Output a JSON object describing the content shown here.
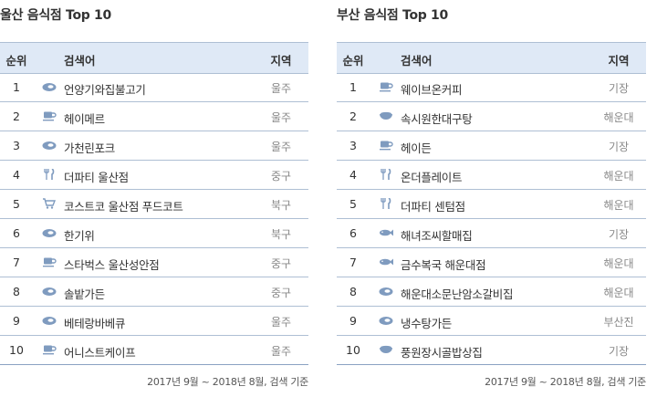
{
  "colors": {
    "header_bg": "#dfe9f6",
    "line": "#aebfd4",
    "icon": "#7f9bbf"
  },
  "headers": {
    "rank": "순위",
    "keyword": "검색어",
    "region": "지역"
  },
  "ulsan": {
    "title": "울산 음식점  Top 10",
    "rows": [
      {
        "rank": "1",
        "icon": "meat-icon",
        "name": "언양기와집불고기",
        "region": "울주"
      },
      {
        "rank": "2",
        "icon": "coffee-cup-icon",
        "name": "헤이메르",
        "region": "울주"
      },
      {
        "rank": "3",
        "icon": "meat-icon",
        "name": "가천린포크",
        "region": "울주"
      },
      {
        "rank": "4",
        "icon": "fork-knife-icon",
        "name": "더파티 울산점",
        "region": "중구"
      },
      {
        "rank": "5",
        "icon": "shopping-cart-icon",
        "name": "코스트코 울산점 푸드코트",
        "region": "북구"
      },
      {
        "rank": "6",
        "icon": "meat-icon",
        "name": "한기위",
        "region": "북구"
      },
      {
        "rank": "7",
        "icon": "coffee-cup-icon",
        "name": "스타벅스 울산성안점",
        "region": "중구"
      },
      {
        "rank": "8",
        "icon": "meat-icon",
        "name": "솔밭가든",
        "region": "중구"
      },
      {
        "rank": "9",
        "icon": "meat-icon",
        "name": "베테랑바베큐",
        "region": "울주"
      },
      {
        "rank": "10",
        "icon": "coffee-cup-icon",
        "name": "어니스트케이프",
        "region": "울주"
      }
    ],
    "footnote": "2017년 9월 ~ 2018년 8월, 검색 기준"
  },
  "busan": {
    "title": "부산 음식점  Top 10",
    "rows": [
      {
        "rank": "1",
        "icon": "coffee-cup-icon",
        "name": "웨이브온커피",
        "region": "기장"
      },
      {
        "rank": "2",
        "icon": "bowl-icon",
        "name": "속시원한대구탕",
        "region": "해운대"
      },
      {
        "rank": "3",
        "icon": "coffee-cup-icon",
        "name": "헤이든",
        "region": "기장"
      },
      {
        "rank": "4",
        "icon": "fork-knife-icon",
        "name": "온더플레이트",
        "region": "해운대"
      },
      {
        "rank": "5",
        "icon": "fork-knife-icon",
        "name": "더파티 센텀점",
        "region": "해운대"
      },
      {
        "rank": "6",
        "icon": "fish-icon",
        "name": "해녀조씨할매집",
        "region": "기장"
      },
      {
        "rank": "7",
        "icon": "fish-icon",
        "name": "금수복국 해운대점",
        "region": "해운대"
      },
      {
        "rank": "8",
        "icon": "meat-icon",
        "name": "해운대소문난암소갈비집",
        "region": "해운대"
      },
      {
        "rank": "9",
        "icon": "meat-icon",
        "name": "냉수탕가든",
        "region": "부산진"
      },
      {
        "rank": "10",
        "icon": "bowl-icon",
        "name": "풍원장시골밥상집",
        "region": "기장"
      }
    ],
    "footnote": "2017년 9월 ~ 2018년 8월, 검색 기준"
  }
}
